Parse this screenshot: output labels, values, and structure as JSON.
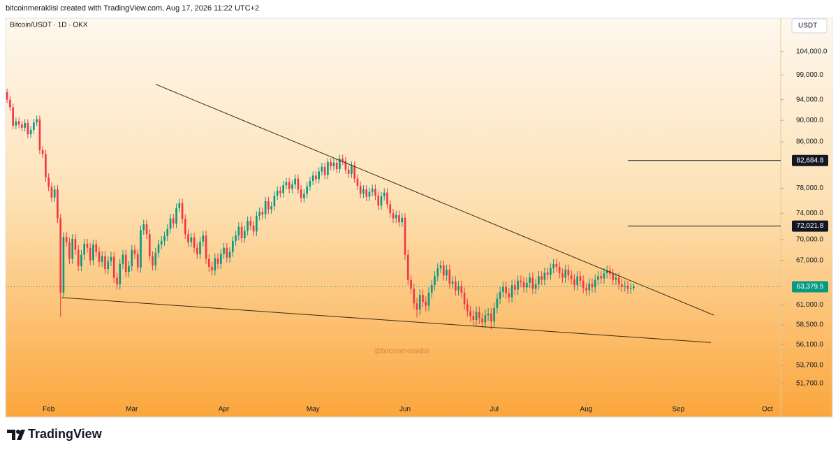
{
  "header": {
    "text": "bitcoinmeraklisi created with TradingView.com, Aug 17, 2026 11:22 UTC+2"
  },
  "chart_data": {
    "type": "candlestick",
    "title": "Bitcoin/USDT · 1D · OKX",
    "currency": "USDT",
    "watermark": "@bitcoinmeraklisi",
    "up_color": "#089981",
    "down_color": "#f23645",
    "log_scale": true,
    "xlim": [
      -0.5,
      260.5
    ],
    "xticks": [
      {
        "value": 14,
        "label": "Feb"
      },
      {
        "value": 42,
        "label": "Mar"
      },
      {
        "value": 73,
        "label": "Apr"
      },
      {
        "value": 103,
        "label": "May"
      },
      {
        "value": 134,
        "label": "Jun"
      },
      {
        "value": 164,
        "label": "Jul"
      },
      {
        "value": 195,
        "label": "Aug"
      },
      {
        "value": 226,
        "label": "Sep"
      },
      {
        "value": 256,
        "label": "Oct"
      }
    ],
    "ylim": [
      49750,
      111600
    ],
    "yticks": [
      {
        "value": 104000,
        "label": "104,000.0"
      },
      {
        "value": 99000,
        "label": "99,000.0"
      },
      {
        "value": 94000,
        "label": "94,000.0"
      },
      {
        "value": 90000,
        "label": "90,000.0"
      },
      {
        "value": 86000,
        "label": "86,000.0"
      },
      {
        "value": 78000,
        "label": "78,000.0"
      },
      {
        "value": 74000,
        "label": "74,000.0"
      },
      {
        "value": 70000,
        "label": "70,000.0"
      },
      {
        "value": 67000,
        "label": "67,000.0"
      },
      {
        "value": 61000,
        "label": "61,000.0"
      },
      {
        "value": 58500,
        "label": "58,500.0"
      },
      {
        "value": 56100,
        "label": "56,100.0"
      },
      {
        "value": 53700,
        "label": "53,700.0"
      },
      {
        "value": 51700,
        "label": "51,700.0"
      }
    ],
    "open": [
      95500,
      94000,
      92500,
      89000,
      89800,
      89200,
      88600,
      89500,
      87400,
      88200,
      89600,
      90200,
      84500,
      83800,
      79800,
      78200,
      76500,
      77800,
      73200,
      62600,
      70400,
      69600,
      67200,
      70100,
      68500,
      66200,
      67800,
      69400,
      68800,
      67000,
      69300,
      68200,
      66800,
      67600,
      65800,
      66900,
      67500,
      64600,
      63700,
      66500,
      67800,
      65400,
      66200,
      68500,
      67900,
      66000,
      71400,
      72300,
      70800,
      67600,
      66300,
      68100,
      69300,
      69800,
      70500,
      71600,
      73200,
      72400,
      74800,
      75600,
      73100,
      70800,
      69600,
      70300,
      68800,
      67900,
      69700,
      70600,
      67200,
      66100,
      65600,
      67300,
      66500,
      67900,
      68800,
      67400,
      68200,
      69800,
      70600,
      71900,
      70200,
      71300,
      72800,
      72100,
      71200,
      73600,
      74200,
      73800,
      75900,
      74600,
      75100,
      76800,
      77600,
      77200,
      78500,
      79000,
      77900,
      78600,
      79600,
      77800,
      76400,
      77100,
      78300,
      79200,
      80100,
      79500,
      80800,
      81600,
      80200,
      82400,
      81700,
      82300,
      81200,
      83000,
      82600,
      81100,
      80400,
      81800,
      79600,
      78400,
      77100,
      77800,
      76600,
      77400,
      77900,
      76800,
      75200,
      76700,
      77300,
      75400,
      74000,
      73200,
      73700,
      72600,
      73300,
      67800,
      64300,
      63100,
      61200,
      60400,
      62300,
      61400,
      60900,
      62600,
      63600,
      64800,
      65900,
      66300,
      64900,
      65700,
      63800,
      64100,
      62900,
      63500,
      62600,
      61100,
      60200,
      59600,
      59100,
      60100,
      59300,
      58800,
      59700,
      59900,
      58900,
      60600,
      61800,
      62700,
      63400,
      62500,
      62000,
      63600,
      63000,
      64200,
      64000,
      63300,
      63900,
      64600,
      63100,
      63700,
      64800,
      64300,
      65300,
      65000,
      65900,
      66500,
      66100,
      65200,
      64600,
      65700,
      64900,
      64400,
      63600,
      64800,
      64200,
      63200,
      62900,
      63800,
      63300,
      64300,
      64800,
      64500,
      65200,
      65600,
      65100,
      64300,
      64600,
      63700,
      63400,
      63500,
      63100,
      63200
    ],
    "high": [
      96200,
      94700,
      93200,
      90500,
      90500,
      89900,
      90200,
      90200,
      88900,
      90300,
      90900,
      90900,
      85200,
      84500,
      80500,
      78900,
      78500,
      78500,
      73900,
      71100,
      71100,
      70300,
      70800,
      70800,
      69200,
      68500,
      70100,
      70100,
      69500,
      70000,
      70000,
      68900,
      68300,
      68300,
      67600,
      68200,
      68200,
      65300,
      67200,
      68500,
      68500,
      66900,
      69200,
      69200,
      68600,
      72100,
      73000,
      73000,
      71500,
      68300,
      68800,
      70000,
      70500,
      71200,
      72300,
      73900,
      73900,
      75500,
      76300,
      76300,
      73800,
      71500,
      71000,
      71000,
      69500,
      70400,
      71300,
      71300,
      67900,
      66800,
      68000,
      68000,
      68600,
      69500,
      69500,
      68900,
      70500,
      71300,
      72600,
      72600,
      72000,
      73500,
      73500,
      72800,
      74300,
      74900,
      74900,
      76600,
      76600,
      75800,
      77500,
      78300,
      78300,
      79200,
      79700,
      79700,
      79300,
      80300,
      80300,
      78500,
      77800,
      79000,
      79900,
      80800,
      80800,
      81500,
      82300,
      82300,
      83100,
      83100,
      83000,
      83000,
      83700,
      83700,
      83300,
      81800,
      82500,
      82500,
      80300,
      79100,
      78500,
      78500,
      78100,
      78600,
      78600,
      77500,
      77400,
      78000,
      78000,
      76100,
      74700,
      74400,
      74400,
      74000,
      74000,
      68500,
      65000,
      63800,
      61900,
      63000,
      63000,
      62100,
      63300,
      64300,
      65500,
      66600,
      67000,
      67000,
      66400,
      66400,
      64800,
      64800,
      64200,
      64200,
      63300,
      61800,
      60900,
      60300,
      60800,
      60800,
      60000,
      60400,
      60600,
      60600,
      61300,
      62500,
      63400,
      64100,
      64100,
      63200,
      64300,
      64300,
      64900,
      64900,
      64700,
      64600,
      65300,
      65300,
      64400,
      65500,
      65500,
      66000,
      66000,
      66600,
      67200,
      67200,
      66800,
      65900,
      66400,
      66400,
      65600,
      65100,
      65500,
      65500,
      64900,
      63900,
      64500,
      64500,
      65000,
      65500,
      65500,
      65900,
      66300,
      66300,
      65800,
      65300,
      65300,
      64400,
      64200,
      64200,
      63900,
      63800
    ],
    "low": [
      93300,
      91800,
      88300,
      88300,
      88500,
      87900,
      87900,
      86700,
      86700,
      87500,
      88900,
      83800,
      83100,
      79100,
      77500,
      75800,
      75800,
      72500,
      59500,
      61900,
      68900,
      66500,
      66500,
      67800,
      65500,
      65500,
      67100,
      68100,
      66300,
      66300,
      67500,
      66100,
      66100,
      65100,
      65100,
      66200,
      63900,
      63000,
      63000,
      65800,
      64700,
      64700,
      65500,
      67200,
      65300,
      65300,
      70700,
      70100,
      66900,
      65600,
      65600,
      67400,
      68600,
      69100,
      69800,
      70900,
      71700,
      71700,
      74100,
      72400,
      70100,
      68900,
      68900,
      68100,
      67200,
      67200,
      69000,
      66500,
      65400,
      64900,
      64900,
      65800,
      65800,
      67200,
      66700,
      66700,
      67500,
      69100,
      69900,
      69500,
      69500,
      70600,
      71400,
      70500,
      70500,
      72900,
      73100,
      73100,
      73900,
      73900,
      74400,
      76100,
      76500,
      76500,
      77800,
      77200,
      77200,
      77900,
      77100,
      75700,
      75700,
      76400,
      77600,
      78500,
      78800,
      78800,
      80100,
      79500,
      79500,
      81000,
      81000,
      80500,
      80500,
      81900,
      80400,
      79700,
      79700,
      78900,
      77700,
      76400,
      76400,
      75900,
      75900,
      76700,
      76100,
      74500,
      74500,
      76000,
      74700,
      73300,
      72500,
      72500,
      71900,
      71900,
      67100,
      63600,
      62400,
      60500,
      59400,
      59700,
      60700,
      60200,
      60200,
      61900,
      62900,
      64100,
      65200,
      64200,
      64200,
      63100,
      63100,
      62200,
      62200,
      61900,
      60400,
      59500,
      58900,
      58400,
      58400,
      58600,
      58100,
      58100,
      59000,
      57900,
      58200,
      59900,
      61100,
      62000,
      61800,
      61300,
      61300,
      62300,
      62300,
      63300,
      62600,
      62600,
      63200,
      62400,
      62400,
      63000,
      63600,
      63600,
      64300,
      64300,
      65200,
      65400,
      64500,
      63900,
      63900,
      64200,
      63700,
      62900,
      62900,
      63500,
      62500,
      62200,
      62200,
      62600,
      62600,
      63600,
      63800,
      63800,
      64500,
      64400,
      63600,
      63600,
      63000,
      62700,
      62700,
      62400,
      62400,
      62900
    ],
    "close": [
      94000,
      92500,
      89000,
      89800,
      89200,
      88600,
      89500,
      87400,
      88200,
      89600,
      90200,
      84500,
      83800,
      79800,
      78200,
      76500,
      77800,
      73200,
      62600,
      70400,
      69600,
      67200,
      70100,
      68500,
      66200,
      67800,
      69400,
      68800,
      67000,
      69300,
      68200,
      66800,
      67600,
      65800,
      66900,
      67500,
      64600,
      63700,
      66500,
      67800,
      65400,
      66200,
      68500,
      67900,
      66000,
      71400,
      72300,
      70800,
      67600,
      66300,
      68100,
      69300,
      69800,
      70500,
      71600,
      73200,
      72400,
      74800,
      75600,
      73100,
      70800,
      69600,
      70300,
      68800,
      67900,
      69700,
      70600,
      67200,
      66100,
      65600,
      67300,
      66500,
      67900,
      68800,
      67400,
      68200,
      69800,
      70600,
      71900,
      70200,
      71300,
      72800,
      72100,
      71200,
      73600,
      74200,
      73800,
      75900,
      74600,
      75100,
      76800,
      77600,
      77200,
      78500,
      79000,
      77900,
      78600,
      79600,
      77800,
      76400,
      77100,
      78300,
      79200,
      80100,
      79500,
      80800,
      81600,
      80200,
      82400,
      81700,
      82300,
      81200,
      83000,
      82600,
      81100,
      80400,
      81800,
      79600,
      78400,
      77100,
      77800,
      76600,
      77400,
      77900,
      76800,
      75200,
      76700,
      77300,
      75400,
      74000,
      73200,
      73700,
      72600,
      73300,
      67800,
      64300,
      63100,
      61200,
      60400,
      62300,
      61400,
      60900,
      62600,
      63600,
      64800,
      65900,
      66300,
      64900,
      65700,
      63800,
      64100,
      62900,
      63500,
      62600,
      61100,
      60200,
      59600,
      59100,
      60100,
      59300,
      58800,
      59700,
      59900,
      58900,
      60600,
      61800,
      62700,
      63400,
      62500,
      62000,
      63600,
      63000,
      64200,
      64000,
      63300,
      63900,
      64600,
      63100,
      63700,
      64800,
      64300,
      65300,
      65000,
      65900,
      66500,
      66100,
      65200,
      64600,
      65700,
      64900,
      64400,
      63600,
      64800,
      64200,
      63200,
      62900,
      63800,
      63300,
      64300,
      64800,
      64500,
      65200,
      65600,
      65100,
      64300,
      64600,
      63700,
      63400,
      63500,
      63100,
      63200,
      63379.5
    ],
    "last_price": {
      "value": 63379.5,
      "label": "63,379.5",
      "color": "#089981"
    },
    "levels": [
      {
        "value": 82684.8,
        "label": "82,684.8",
        "start": 209
      },
      {
        "value": 72021.8,
        "label": "72,021.8",
        "start": 209
      }
    ],
    "trendlines": [
      {
        "x": [
          50,
          238
        ],
        "y": [
          97100,
          59700
        ]
      },
      {
        "x": [
          18.5,
          237
        ],
        "y": [
          61950,
          56350
        ]
      }
    ]
  },
  "footer": {
    "brand": "TradingView"
  }
}
